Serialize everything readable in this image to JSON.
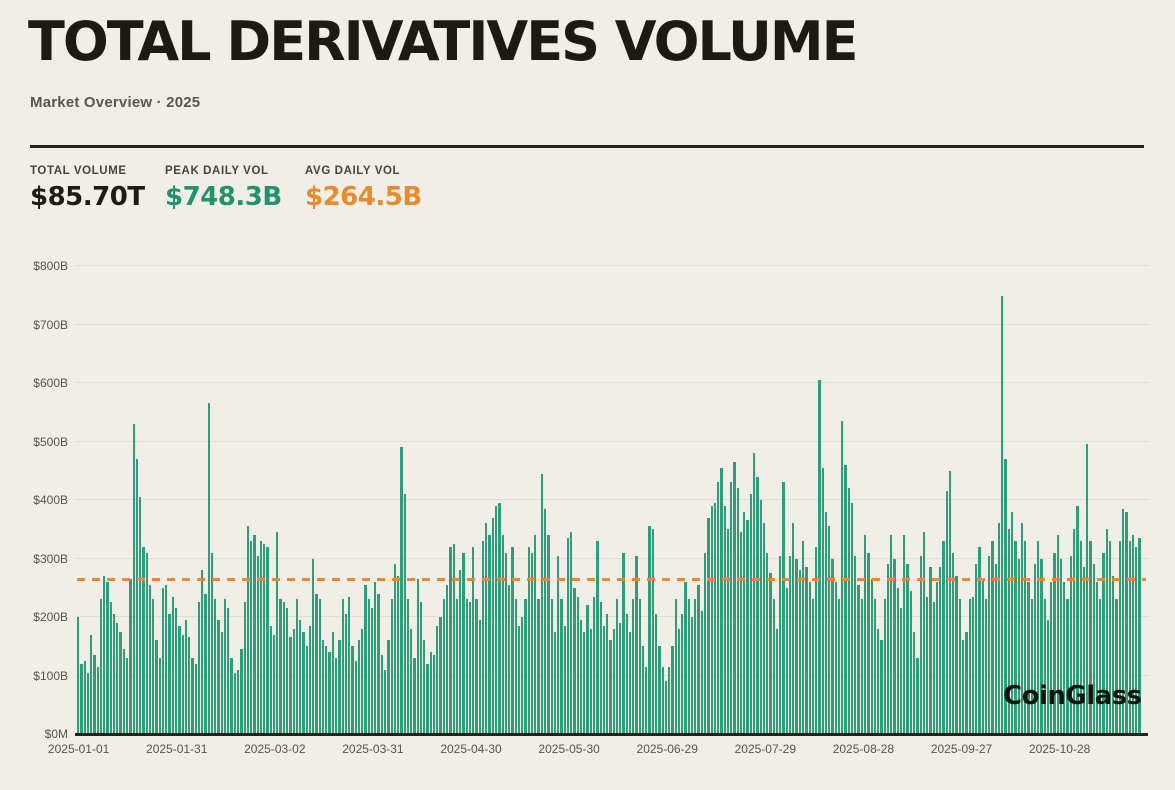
{
  "header": {
    "title": "TOTAL DERIVATIVES VOLUME",
    "subtitle": "Market Overview · 2025"
  },
  "stats": [
    {
      "label": "TOTAL VOLUME",
      "value": "$85.70T",
      "color": "#1c1b16"
    },
    {
      "label": "PEAK DAILY VOL",
      "value": "$748.3B",
      "color": "#22926d"
    },
    {
      "label": "AVG DAILY VOL",
      "value": "$264.5B",
      "color": "#e98a2c"
    }
  ],
  "watermark": "CoinGlass",
  "colors": {
    "background": "#f0eee7",
    "text_dark": "#1b1a15",
    "text_gray": "#57564f",
    "grid": "#e1ded5",
    "bar": "#2f9c7c",
    "avg_line": "#e8892e",
    "baseline": "#23221c"
  },
  "chart_data": {
    "type": "bar",
    "title": "Daily total derivatives volume, 2025",
    "unit": "$B",
    "start_date": "2025-01-01",
    "end_date": "2025-11-22",
    "ylim": [
      0,
      800
    ],
    "grid": true,
    "legend": false,
    "avg_line": 264.5,
    "bar_color": "#2f9c7c",
    "avg_line_color": "#e8892e",
    "y_ticks": [
      {
        "value": 0,
        "label": "$0M"
      },
      {
        "value": 100,
        "label": "$100B"
      },
      {
        "value": 200,
        "label": "$200B"
      },
      {
        "value": 300,
        "label": "$300B"
      },
      {
        "value": 400,
        "label": "$400B"
      },
      {
        "value": 500,
        "label": "$500B"
      },
      {
        "value": 600,
        "label": "$600B"
      },
      {
        "value": 700,
        "label": "$700B"
      },
      {
        "value": 800,
        "label": "$800B"
      }
    ],
    "x_ticks": [
      {
        "day": 0,
        "label": "2025-01-01"
      },
      {
        "day": 30,
        "label": "2025-01-31"
      },
      {
        "day": 60,
        "label": "2025-03-02"
      },
      {
        "day": 90,
        "label": "2025-03-31"
      },
      {
        "day": 120,
        "label": "2025-04-30"
      },
      {
        "day": 150,
        "label": "2025-05-30"
      },
      {
        "day": 180,
        "label": "2025-06-29"
      },
      {
        "day": 210,
        "label": "2025-07-29"
      },
      {
        "day": 240,
        "label": "2025-08-28"
      },
      {
        "day": 270,
        "label": "2025-09-27"
      },
      {
        "day": 300,
        "label": "2025-10-28"
      }
    ],
    "values": [
      200,
      120,
      125,
      105,
      170,
      135,
      115,
      230,
      270,
      260,
      225,
      205,
      190,
      175,
      145,
      130,
      265,
      530,
      470,
      405,
      320,
      310,
      255,
      230,
      160,
      130,
      250,
      255,
      205,
      235,
      215,
      185,
      170,
      195,
      165,
      130,
      120,
      225,
      280,
      240,
      565,
      310,
      230,
      195,
      175,
      230,
      215,
      130,
      105,
      110,
      145,
      225,
      355,
      330,
      340,
      305,
      330,
      325,
      320,
      185,
      170,
      345,
      230,
      225,
      215,
      165,
      180,
      230,
      195,
      175,
      150,
      185,
      300,
      240,
      230,
      160,
      150,
      140,
      175,
      130,
      160,
      230,
      205,
      235,
      150,
      125,
      160,
      180,
      255,
      230,
      215,
      260,
      240,
      135,
      110,
      160,
      230,
      290,
      270,
      490,
      410,
      230,
      180,
      130,
      265,
      225,
      160,
      120,
      140,
      135,
      185,
      200,
      230,
      255,
      320,
      325,
      230,
      280,
      310,
      230,
      225,
      320,
      230,
      195,
      330,
      360,
      340,
      370,
      390,
      395,
      340,
      310,
      255,
      320,
      230,
      185,
      200,
      230,
      320,
      310,
      340,
      230,
      445,
      385,
      340,
      230,
      175,
      305,
      230,
      185,
      335,
      345,
      250,
      235,
      195,
      175,
      220,
      180,
      235,
      330,
      225,
      185,
      205,
      160,
      180,
      230,
      190,
      310,
      205,
      175,
      230,
      305,
      230,
      150,
      115,
      355,
      350,
      205,
      150,
      115,
      90,
      115,
      150,
      230,
      180,
      205,
      260,
      230,
      200,
      230,
      255,
      210,
      310,
      370,
      390,
      395,
      430,
      455,
      390,
      350,
      430,
      465,
      420,
      345,
      380,
      365,
      410,
      480,
      440,
      400,
      360,
      310,
      275,
      230,
      180,
      305,
      430,
      250,
      305,
      360,
      300,
      280,
      330,
      285,
      260,
      230,
      320,
      605,
      455,
      380,
      355,
      300,
      260,
      230,
      535,
      460,
      420,
      395,
      305,
      255,
      230,
      340,
      310,
      265,
      230,
      180,
      160,
      230,
      290,
      340,
      300,
      250,
      215,
      340,
      290,
      245,
      175,
      130,
      305,
      345,
      235,
      285,
      225,
      260,
      285,
      330,
      415,
      450,
      310,
      270,
      230,
      160,
      175,
      230,
      235,
      290,
      320,
      265,
      230,
      305,
      330,
      290,
      360,
      748,
      470,
      350,
      380,
      330,
      300,
      360,
      330,
      260,
      230,
      290,
      330,
      300,
      230,
      195,
      260,
      310,
      340,
      300,
      260,
      230,
      305,
      350,
      390,
      330,
      285,
      496,
      330,
      290,
      260,
      230,
      310,
      350,
      330,
      270,
      230,
      330,
      385,
      380,
      330,
      340,
      320,
      335
    ]
  }
}
